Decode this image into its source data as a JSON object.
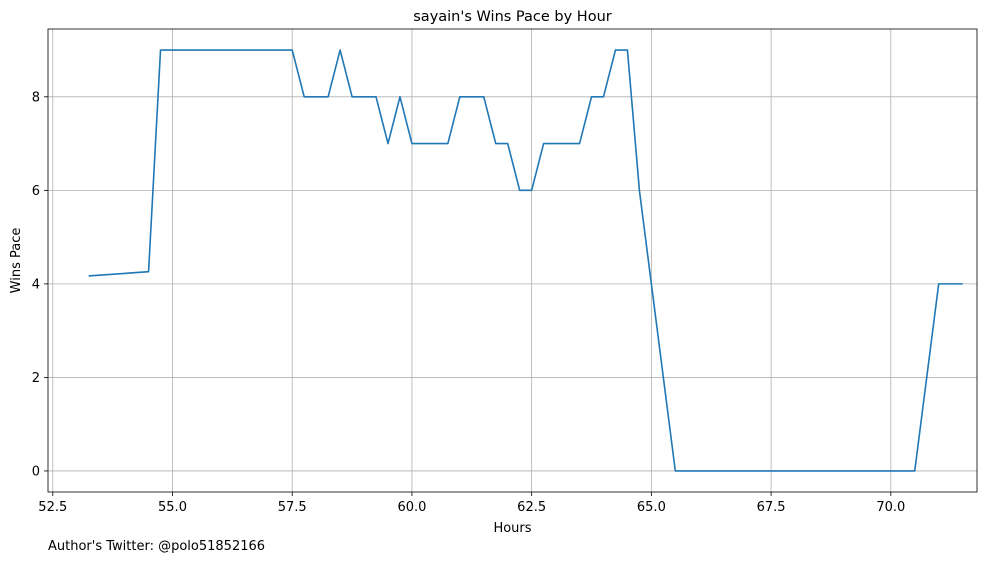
{
  "footer": {
    "author_text": "Author's Twitter: @polo51852166"
  },
  "chart_data": {
    "type": "line",
    "title": "sayain's Wins Pace by Hour",
    "xlabel": "Hours",
    "ylabel": "Wins Pace",
    "xlim": [
      52.4,
      71.8
    ],
    "ylim": [
      -0.45,
      9.45
    ],
    "xticks": [
      52.5,
      55.0,
      57.5,
      60.0,
      62.5,
      65.0,
      67.5,
      70.0
    ],
    "xtick_labels": [
      "52.5",
      "55.0",
      "57.5",
      "60.0",
      "62.5",
      "65.0",
      "67.5",
      "70.0"
    ],
    "yticks": [
      0,
      2,
      4,
      6,
      8
    ],
    "ytick_labels": [
      "0",
      "2",
      "4",
      "6",
      "8"
    ],
    "grid": true,
    "line_color": "#1f77b4",
    "series": [
      {
        "x": [
          53.25,
          54.5,
          54.75,
          55.0,
          55.25,
          55.5,
          55.75,
          56.0,
          56.25,
          56.5,
          56.75,
          57.0,
          57.25,
          57.5,
          57.75,
          58.0,
          58.25,
          58.5,
          58.75,
          59.0,
          59.25,
          59.5,
          59.75,
          60.0,
          60.25,
          60.5,
          60.75,
          61.0,
          61.25,
          61.5,
          61.75,
          62.0,
          62.25,
          62.5,
          62.75,
          63.0,
          63.25,
          63.5,
          63.75,
          64.0,
          64.25,
          64.5,
          64.75,
          65.0,
          65.25,
          65.5,
          70.5,
          71.0,
          71.25,
          71.5
        ],
        "y": [
          4.17,
          4.26,
          9,
          9,
          9,
          9,
          9,
          9,
          9,
          9,
          9,
          9,
          9,
          9,
          8,
          8,
          8,
          9,
          8,
          8,
          8,
          7,
          8,
          7,
          7,
          7,
          7,
          8,
          8,
          8,
          7,
          7,
          6,
          6,
          7,
          7,
          7,
          7,
          8,
          8,
          9,
          9,
          6,
          4,
          2,
          0,
          0,
          4,
          4,
          4
        ]
      }
    ]
  }
}
